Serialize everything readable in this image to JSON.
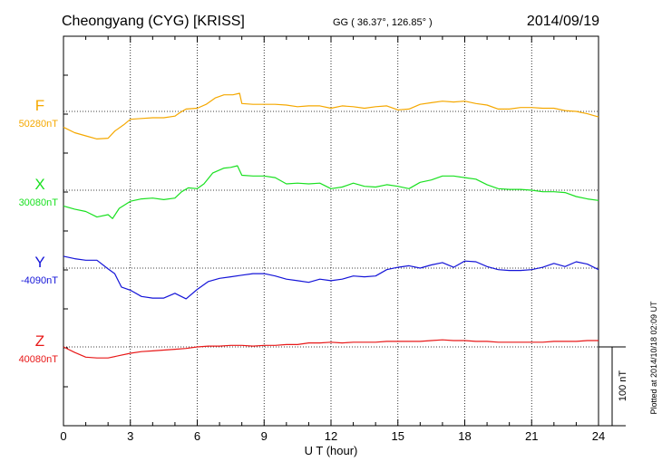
{
  "header": {
    "station": "Cheongyang (CYG)  [KRISS]",
    "coords": "GG ( 36.37°, 126.85° )",
    "date": "2014/09/19"
  },
  "footer": {
    "plotted": "Plotted at 2014/10/18 02:09 UT",
    "scale_label": "100 nT"
  },
  "chart_data": {
    "type": "line",
    "xlabel": "U T (hour)",
    "xlim": [
      0,
      24
    ],
    "xticks": [
      0,
      3,
      6,
      9,
      12,
      15,
      18,
      21,
      24
    ],
    "tick_labels": [
      "0",
      "3",
      "6",
      "9",
      "12",
      "15",
      "18",
      "21",
      "24"
    ],
    "scale_nT": 100,
    "grid": true,
    "series": [
      {
        "name": "F",
        "baseline_label": "50280nT",
        "baseline_nT": 50280,
        "color": "#f5a800",
        "points": [
          [
            0,
            50260
          ],
          [
            0.5,
            50253
          ],
          [
            1,
            50249
          ],
          [
            1.5,
            50245
          ],
          [
            2,
            50246
          ],
          [
            2.3,
            50255
          ],
          [
            2.7,
            50263
          ],
          [
            3,
            50270
          ],
          [
            3.5,
            50271
          ],
          [
            4,
            50272
          ],
          [
            4.5,
            50272
          ],
          [
            5,
            50274
          ],
          [
            5.2,
            50278
          ],
          [
            5.5,
            50283
          ],
          [
            6,
            50284
          ],
          [
            6.4,
            50289
          ],
          [
            6.8,
            50297
          ],
          [
            7.2,
            50301
          ],
          [
            7.6,
            50301
          ],
          [
            7.9,
            50303
          ],
          [
            8,
            50290
          ],
          [
            8.5,
            50289
          ],
          [
            9,
            50289
          ],
          [
            9.5,
            50289
          ],
          [
            10,
            50288
          ],
          [
            10.5,
            50286
          ],
          [
            11,
            50287
          ],
          [
            11.5,
            50287
          ],
          [
            12,
            50284
          ],
          [
            12.5,
            50287
          ],
          [
            13,
            50286
          ],
          [
            13.5,
            50284
          ],
          [
            14,
            50286
          ],
          [
            14.5,
            50287
          ],
          [
            15,
            50282
          ],
          [
            15.5,
            50283
          ],
          [
            16,
            50289
          ],
          [
            16.5,
            50291
          ],
          [
            17,
            50293
          ],
          [
            17.5,
            50292
          ],
          [
            18,
            50293
          ],
          [
            18.5,
            50290
          ],
          [
            19,
            50288
          ],
          [
            19.5,
            50283
          ],
          [
            20,
            50283
          ],
          [
            20.5,
            50285
          ],
          [
            21,
            50285
          ],
          [
            21.5,
            50284
          ],
          [
            22,
            50284
          ],
          [
            22.5,
            50281
          ],
          [
            23,
            50280
          ],
          [
            23.5,
            50277
          ],
          [
            24,
            50273
          ]
        ]
      },
      {
        "name": "X",
        "baseline_label": "30080nT",
        "baseline_nT": 30080,
        "color": "#19e020",
        "points": [
          [
            0,
            30060
          ],
          [
            0.5,
            30056
          ],
          [
            1,
            30053
          ],
          [
            1.5,
            30046
          ],
          [
            2,
            30049
          ],
          [
            2.2,
            30044
          ],
          [
            2.5,
            30057
          ],
          [
            3,
            30066
          ],
          [
            3.5,
            30069
          ],
          [
            4,
            30070
          ],
          [
            4.5,
            30068
          ],
          [
            5,
            30070
          ],
          [
            5.3,
            30078
          ],
          [
            5.6,
            30083
          ],
          [
            6,
            30082
          ],
          [
            6.3,
            30088
          ],
          [
            6.7,
            30102
          ],
          [
            7.2,
            30108
          ],
          [
            7.5,
            30109
          ],
          [
            7.8,
            30111
          ],
          [
            8,
            30099
          ],
          [
            8.5,
            30098
          ],
          [
            9,
            30098
          ],
          [
            9.5,
            30096
          ],
          [
            10,
            30088
          ],
          [
            10.5,
            30089
          ],
          [
            11,
            30088
          ],
          [
            11.5,
            30089
          ],
          [
            12,
            30082
          ],
          [
            12.5,
            30084
          ],
          [
            13,
            30089
          ],
          [
            13.5,
            30085
          ],
          [
            14,
            30084
          ],
          [
            14.5,
            30087
          ],
          [
            15,
            30085
          ],
          [
            15.5,
            30082
          ],
          [
            16,
            30090
          ],
          [
            16.5,
            30093
          ],
          [
            17,
            30098
          ],
          [
            17.5,
            30098
          ],
          [
            18,
            30096
          ],
          [
            18.5,
            30094
          ],
          [
            19,
            30087
          ],
          [
            19.5,
            30082
          ],
          [
            20,
            30081
          ],
          [
            20.5,
            30081
          ],
          [
            21,
            30080
          ],
          [
            21.5,
            30078
          ],
          [
            22,
            30078
          ],
          [
            22.5,
            30077
          ],
          [
            23,
            30072
          ],
          [
            23.5,
            30069
          ],
          [
            24,
            30067
          ]
        ]
      },
      {
        "name": "Y",
        "baseline_label": "-4090nT",
        "baseline_nT": -4090,
        "color": "#1414d8",
        "points": [
          [
            0,
            -4075
          ],
          [
            0.5,
            -4078
          ],
          [
            1,
            -4080
          ],
          [
            1.5,
            -4080
          ],
          [
            2,
            -4091
          ],
          [
            2.3,
            -4097
          ],
          [
            2.6,
            -4114
          ],
          [
            3,
            -4118
          ],
          [
            3.5,
            -4126
          ],
          [
            4,
            -4128
          ],
          [
            4.5,
            -4128
          ],
          [
            5,
            -4122
          ],
          [
            5.5,
            -4129
          ],
          [
            6,
            -4117
          ],
          [
            6.5,
            -4107
          ],
          [
            7,
            -4103
          ],
          [
            7.5,
            -4101
          ],
          [
            8,
            -4099
          ],
          [
            8.5,
            -4097
          ],
          [
            9,
            -4097
          ],
          [
            9.5,
            -4100
          ],
          [
            10,
            -4104
          ],
          [
            10.5,
            -4106
          ],
          [
            11,
            -4108
          ],
          [
            11.5,
            -4104
          ],
          [
            12,
            -4106
          ],
          [
            12.5,
            -4104
          ],
          [
            13,
            -4100
          ],
          [
            13.5,
            -4101
          ],
          [
            14,
            -4100
          ],
          [
            14.5,
            -4092
          ],
          [
            15,
            -4089
          ],
          [
            15.5,
            -4087
          ],
          [
            16,
            -4090
          ],
          [
            16.5,
            -4086
          ],
          [
            17,
            -4083
          ],
          [
            17.5,
            -4089
          ],
          [
            18,
            -4081
          ],
          [
            18.5,
            -4082
          ],
          [
            19,
            -4088
          ],
          [
            19.5,
            -4092
          ],
          [
            20,
            -4093
          ],
          [
            20.5,
            -4093
          ],
          [
            21,
            -4092
          ],
          [
            21.5,
            -4089
          ],
          [
            22,
            -4084
          ],
          [
            22.5,
            -4088
          ],
          [
            23,
            -4082
          ],
          [
            23.5,
            -4085
          ],
          [
            24,
            -4092
          ]
        ]
      },
      {
        "name": "Z",
        "baseline_label": "40080nT",
        "baseline_nT": 40080,
        "color": "#e81818",
        "points": [
          [
            0,
            40080
          ],
          [
            0.5,
            40073
          ],
          [
            1,
            40067
          ],
          [
            1.5,
            40066
          ],
          [
            2,
            40066
          ],
          [
            2.5,
            40069
          ],
          [
            3,
            40072
          ],
          [
            3.5,
            40074
          ],
          [
            4,
            40075
          ],
          [
            4.5,
            40076
          ],
          [
            5,
            40077
          ],
          [
            5.5,
            40078
          ],
          [
            6,
            40080
          ],
          [
            6.5,
            40081
          ],
          [
            7,
            40081
          ],
          [
            7.5,
            40082
          ],
          [
            8,
            40082
          ],
          [
            8.5,
            40081
          ],
          [
            9,
            40082
          ],
          [
            9.5,
            40082
          ],
          [
            10,
            40083
          ],
          [
            10.5,
            40083
          ],
          [
            11,
            40085
          ],
          [
            11.5,
            40085
          ],
          [
            12,
            40086
          ],
          [
            12.5,
            40085
          ],
          [
            13,
            40086
          ],
          [
            13.5,
            40086
          ],
          [
            14,
            40086
          ],
          [
            14.5,
            40087
          ],
          [
            15,
            40087
          ],
          [
            15.5,
            40087
          ],
          [
            16,
            40087
          ],
          [
            16.5,
            40088
          ],
          [
            17,
            40089
          ],
          [
            17.5,
            40088
          ],
          [
            18,
            40088
          ],
          [
            18.5,
            40087
          ],
          [
            19,
            40087
          ],
          [
            19.5,
            40086
          ],
          [
            20,
            40086
          ],
          [
            20.5,
            40086
          ],
          [
            21,
            40086
          ],
          [
            21.5,
            40086
          ],
          [
            22,
            40087
          ],
          [
            22.5,
            40087
          ],
          [
            23,
            40087
          ],
          [
            23.5,
            40088
          ],
          [
            24,
            40088
          ]
        ]
      }
    ]
  }
}
